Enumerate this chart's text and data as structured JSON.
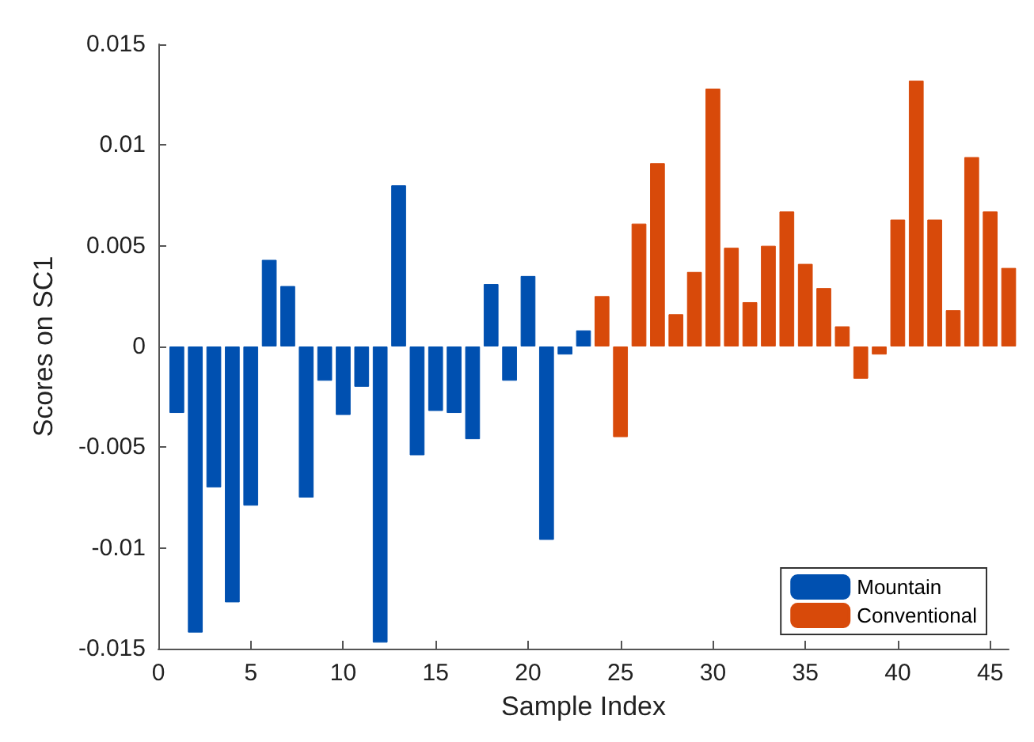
{
  "chart_data": {
    "type": "bar",
    "xlabel": "Sample Index",
    "ylabel": "Scores on SC1",
    "xlim": [
      0,
      46
    ],
    "xticks": [
      0,
      5,
      10,
      15,
      20,
      25,
      30,
      35,
      40,
      45
    ],
    "ylim": [
      -0.015,
      0.015
    ],
    "yticks": [
      -0.015,
      -0.01,
      -0.005,
      0,
      0.005,
      0.01,
      0.015
    ],
    "grid": false,
    "legend": "bottom right",
    "series": [
      {
        "name": "Mountain",
        "color": "#0050b0",
        "x": [
          1,
          2,
          3,
          4,
          5,
          6,
          7,
          8,
          9,
          10,
          11,
          12,
          13,
          14,
          15,
          16,
          17,
          18,
          19,
          20,
          21,
          22,
          23
        ],
        "values": [
          -0.0033,
          -0.0142,
          -0.007,
          -0.0127,
          -0.0079,
          0.0043,
          0.003,
          -0.0075,
          -0.0017,
          -0.0034,
          -0.002,
          -0.0147,
          0.008,
          -0.0054,
          -0.0032,
          -0.0033,
          -0.0046,
          0.0031,
          -0.0017,
          0.0035,
          -0.0096,
          -0.0004,
          0.0008
        ]
      },
      {
        "name": "Conventional",
        "color": "#d84a0a",
        "x": [
          24,
          25,
          26,
          27,
          28,
          29,
          30,
          31,
          32,
          33,
          34,
          35,
          36,
          37,
          38,
          39,
          40,
          41,
          42,
          43,
          44,
          45,
          46
        ],
        "values": [
          0.0025,
          -0.0045,
          0.0061,
          0.0091,
          0.0016,
          0.0037,
          0.0128,
          0.0049,
          0.0022,
          0.005,
          0.0067,
          0.0041,
          0.0029,
          0.001,
          -0.0016,
          -0.0004,
          0.0063,
          0.0132,
          0.0063,
          0.0018,
          0.0094,
          0.0067,
          0.0039
        ]
      }
    ]
  }
}
